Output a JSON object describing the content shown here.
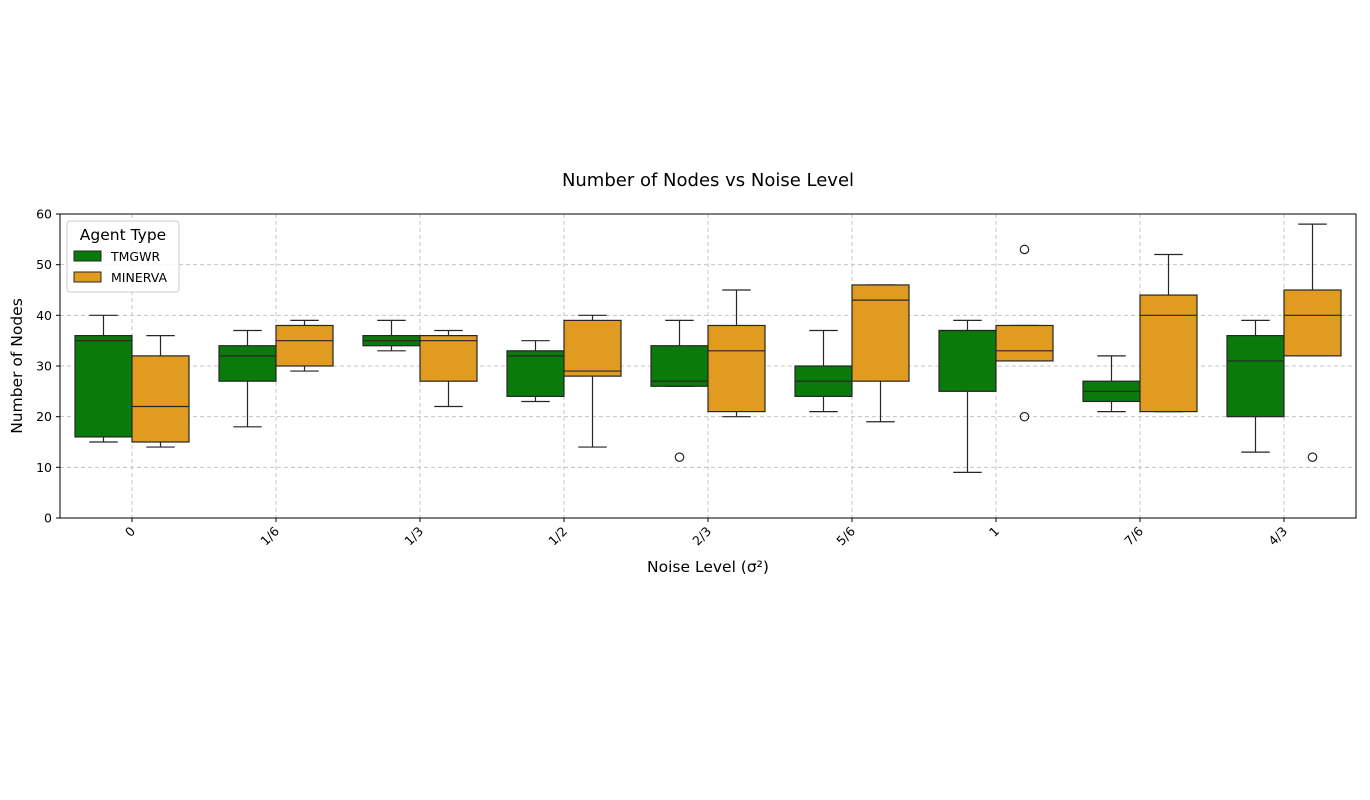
{
  "chart_data": {
    "type": "boxplot",
    "title": "Number of Nodes vs Noise Level",
    "xlabel": "Noise Level (σ²)",
    "ylabel": "Number of Nodes",
    "ylim": [
      0,
      60
    ],
    "yticks": [
      0,
      10,
      20,
      30,
      40,
      50,
      60
    ],
    "grid": true,
    "legend": {
      "title": "Agent Type",
      "placement": "top-left"
    },
    "categories": [
      "0",
      "1/6",
      "1/3",
      "1/2",
      "2/3",
      "5/6",
      "1",
      "7/6",
      "4/3"
    ],
    "series": [
      {
        "name": "TMGWR",
        "color": "#0a7a0a",
        "boxes": [
          {
            "whisker_low": 15,
            "q1": 16,
            "median": 35,
            "q3": 36,
            "whisker_high": 40,
            "outliers": []
          },
          {
            "whisker_low": 18,
            "q1": 27,
            "median": 32,
            "q3": 34,
            "whisker_high": 37,
            "outliers": []
          },
          {
            "whisker_low": 33,
            "q1": 34,
            "median": 35,
            "q3": 36,
            "whisker_high": 39,
            "outliers": []
          },
          {
            "whisker_low": 23,
            "q1": 24,
            "median": 32,
            "q3": 33,
            "whisker_high": 35,
            "outliers": []
          },
          {
            "whisker_low": 26,
            "q1": 26,
            "median": 27,
            "q3": 34,
            "whisker_high": 39,
            "outliers": [
              12
            ]
          },
          {
            "whisker_low": 21,
            "q1": 24,
            "median": 27,
            "q3": 30,
            "whisker_high": 37,
            "outliers": []
          },
          {
            "whisker_low": 9,
            "q1": 25,
            "median": 37,
            "q3": 37,
            "whisker_high": 39,
            "outliers": []
          },
          {
            "whisker_low": 21,
            "q1": 23,
            "median": 25,
            "q3": 27,
            "whisker_high": 32,
            "outliers": []
          },
          {
            "whisker_low": 13,
            "q1": 20,
            "median": 31,
            "q3": 36,
            "whisker_high": 39,
            "outliers": []
          }
        ]
      },
      {
        "name": "MINERVA",
        "color": "#e09b20",
        "boxes": [
          {
            "whisker_low": 14,
            "q1": 15,
            "median": 22,
            "q3": 32,
            "whisker_high": 36,
            "outliers": []
          },
          {
            "whisker_low": 29,
            "q1": 30,
            "median": 35,
            "q3": 38,
            "whisker_high": 39,
            "outliers": []
          },
          {
            "whisker_low": 22,
            "q1": 27,
            "median": 35,
            "q3": 36,
            "whisker_high": 37,
            "outliers": []
          },
          {
            "whisker_low": 14,
            "q1": 28,
            "median": 29,
            "q3": 39,
            "whisker_high": 40,
            "outliers": []
          },
          {
            "whisker_low": 20,
            "q1": 21,
            "median": 33,
            "q3": 38,
            "whisker_high": 45,
            "outliers": []
          },
          {
            "whisker_low": 19,
            "q1": 27,
            "median": 43,
            "q3": 46,
            "whisker_high": 46,
            "outliers": []
          },
          {
            "whisker_low": 31,
            "q1": 31,
            "median": 33,
            "q3": 38,
            "whisker_high": 38,
            "outliers": [
              53,
              20
            ]
          },
          {
            "whisker_low": 21,
            "q1": 21,
            "median": 40,
            "q3": 44,
            "whisker_high": 52,
            "outliers": []
          },
          {
            "whisker_low": 32,
            "q1": 32,
            "median": 40,
            "q3": 45,
            "whisker_high": 58,
            "outliers": [
              12
            ]
          }
        ]
      }
    ]
  }
}
